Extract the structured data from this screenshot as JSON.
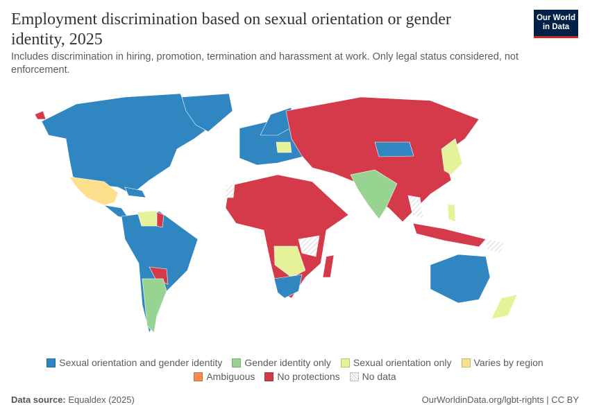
{
  "title": "Employment discrimination based on sexual orientation or gender identity, 2025",
  "subtitle": "Includes discrimination in hiring, promotion, termination and harassment at work. Only legal status considered, not enforcement.",
  "logo": {
    "line1": "Our World",
    "line2": "in Data"
  },
  "legend": {
    "rows": [
      [
        {
          "key": "both",
          "label": "Sexual orientation and gender identity",
          "color": "#2f86c0"
        },
        {
          "key": "gi",
          "label": "Gender identity only",
          "color": "#98d491"
        },
        {
          "key": "so",
          "label": "Sexual orientation only",
          "color": "#e5f29a"
        },
        {
          "key": "varies",
          "label": "Varies by region",
          "color": "#fde08d"
        }
      ],
      [
        {
          "key": "ambiguous",
          "label": "Ambiguous",
          "color": "#fb8a4f"
        },
        {
          "key": "none",
          "label": "No protections",
          "color": "#d43a4a"
        },
        {
          "key": "nodata",
          "label": "No data",
          "color": "hatched"
        }
      ]
    ]
  },
  "footer": {
    "source_label": "Data source:",
    "source": "Equaldex (2025)",
    "link": "OurWorldinData.org/lgbt-rights | CC BY"
  }
}
